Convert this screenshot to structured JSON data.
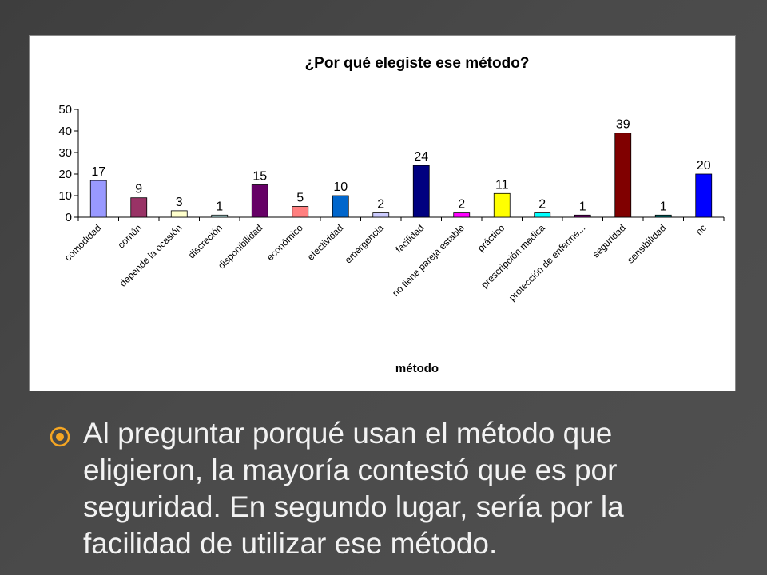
{
  "colors": {
    "slide_background": "#474747",
    "text": "#f2f2f2",
    "bullet_accent": "#f5a623",
    "chart_background": "#ffffff"
  },
  "bullet": {
    "icon": "target-bullet-icon",
    "text": "Al preguntar porqué usan el método que eligieron, la mayoría contestó que es por seguridad. En segundo lugar, sería por la facilidad de utilizar ese método."
  },
  "chart_data": {
    "type": "bar",
    "title": "¿Por qué elegiste ese método?",
    "xlabel": "método",
    "ylabel": "",
    "ylim": [
      0,
      50
    ],
    "yticks": [
      0,
      10,
      20,
      30,
      40,
      50
    ],
    "grid": false,
    "legend": "none",
    "categories": [
      "comodidad",
      "común",
      "depende la ocasión",
      "discreción",
      "disponibilidad",
      "económico",
      "efectividad",
      "emergencia",
      "facilidad",
      "no tiene pareja estable",
      "práctico",
      "prescripción médica",
      "protección de enferme...",
      "seguridad",
      "sensibilidad",
      "nc"
    ],
    "values": [
      17,
      9,
      3,
      1,
      15,
      5,
      10,
      2,
      24,
      2,
      11,
      2,
      1,
      39,
      1,
      20
    ],
    "bar_colors": [
      "#9999ff",
      "#993366",
      "#ffffcc",
      "#ccffff",
      "#660066",
      "#ff8080",
      "#0066cc",
      "#ccccff",
      "#000080",
      "#ff00ff",
      "#ffff00",
      "#00ffff",
      "#800080",
      "#800000",
      "#008080",
      "#0000ff"
    ]
  }
}
